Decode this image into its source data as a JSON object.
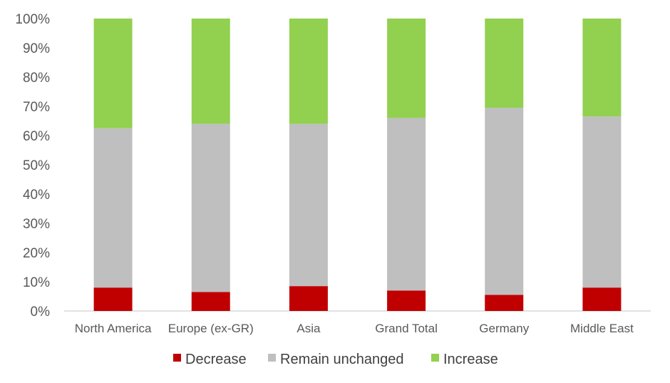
{
  "chart_data": {
    "type": "bar",
    "stacked": true,
    "categories": [
      "North America",
      "Europe (ex-GR)",
      "Asia",
      "Grand Total",
      "Germany",
      "Middle East"
    ],
    "series": [
      {
        "name": "Decrease",
        "color": "#c00000",
        "values": [
          8,
          6.5,
          8.5,
          7,
          5.5,
          8
        ]
      },
      {
        "name": "Remain unchanged",
        "color": "#bfbfbf",
        "values": [
          54.5,
          57.5,
          55.5,
          59,
          64,
          58.5
        ]
      },
      {
        "name": "Increase",
        "color": "#92d050",
        "values": [
          37.5,
          36,
          36,
          34,
          30.5,
          33.5
        ]
      }
    ],
    "y_ticks": [
      "0%",
      "10%",
      "20%",
      "30%",
      "40%",
      "50%",
      "60%",
      "70%",
      "80%",
      "90%",
      "100%"
    ],
    "ylim": [
      0,
      100
    ],
    "grid": false,
    "legend_position": "bottom"
  }
}
